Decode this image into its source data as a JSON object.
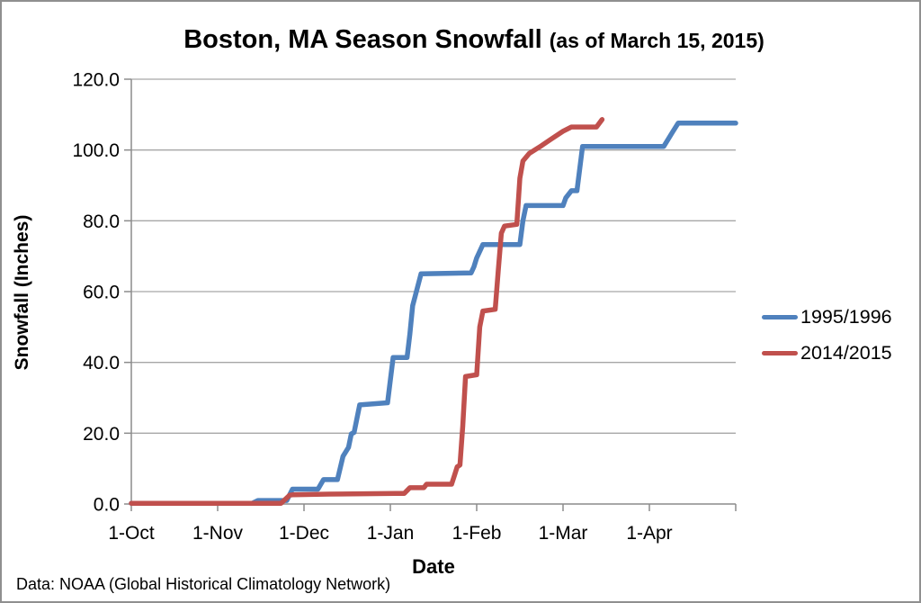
{
  "title": {
    "main": "Boston, MA Season Snowfall",
    "suffix": "(as of March 15, 2015)"
  },
  "footer": {
    "source": "Data: NOAA (Global Historical Climatology Network)"
  },
  "colors": {
    "series_blue": "#4f81bd",
    "series_red": "#c0504d",
    "gridline": "#a6a6a6",
    "axis": "#8c8c8c",
    "background": "#ffffff",
    "text": "#000000"
  },
  "chart_data": {
    "type": "line",
    "title": "Boston, MA Season Snowfall (as of March 15, 2015)",
    "xlabel": "Date",
    "ylabel": "Snowfall (Inches)",
    "ylim": [
      0,
      120
    ],
    "ytick_step": 20,
    "ytick_labels": [
      "0.0",
      "20.0",
      "40.0",
      "60.0",
      "80.0",
      "100.0",
      "120.0"
    ],
    "xtick_labels": [
      "1-Oct",
      "1-Nov",
      "1-Dec",
      "1-Jan",
      "1-Feb",
      "1-Mar",
      "1-Apr"
    ],
    "x_axis_months": [
      "Oct",
      "Nov",
      "Dec",
      "Jan",
      "Feb",
      "Mar",
      "Apr",
      "May"
    ],
    "x_axis_days_per_month": [
      31,
      30,
      31,
      31,
      28,
      31,
      30,
      31
    ],
    "grid": true,
    "legend_position": "right",
    "series": [
      {
        "name": "1995/1996",
        "color": "#4f81bd",
        "points": [
          [
            "Oct 1",
            0.2
          ],
          [
            "Nov 13",
            0.2
          ],
          [
            "Nov 15",
            1.0
          ],
          [
            "Nov 25",
            1.0
          ],
          [
            "Nov 27",
            4.2
          ],
          [
            "Dec 6",
            4.2
          ],
          [
            "Dec 8",
            6.9
          ],
          [
            "Dec 13",
            6.9
          ],
          [
            "Dec 15",
            13.5
          ],
          [
            "Dec 17",
            16.0
          ],
          [
            "Dec 18",
            19.8
          ],
          [
            "Dec 19",
            20.2
          ],
          [
            "Dec 21",
            28.0
          ],
          [
            "Dec 31",
            28.6
          ],
          [
            "Jan 2",
            41.4
          ],
          [
            "Jan 7",
            41.4
          ],
          [
            "Jan 8",
            48.0
          ],
          [
            "Jan 9",
            56.0
          ],
          [
            "Jan 10",
            59.0
          ],
          [
            "Jan 12",
            65.0
          ],
          [
            "Jan 30",
            65.3
          ],
          [
            "Jan 31",
            67.0
          ],
          [
            "Feb 1",
            69.5
          ],
          [
            "Feb 3",
            73.3
          ],
          [
            "Feb 15",
            73.3
          ],
          [
            "Feb 16",
            80.0
          ],
          [
            "Feb 17",
            84.3
          ],
          [
            "Mar 1",
            84.3
          ],
          [
            "Mar 2",
            86.5
          ],
          [
            "Mar 4",
            88.5
          ],
          [
            "Mar 6",
            88.5
          ],
          [
            "Mar 8",
            101.0
          ],
          [
            "Apr 6",
            101.0
          ],
          [
            "Apr 9",
            105.0
          ],
          [
            "Apr 11",
            107.6
          ],
          [
            "May 1",
            107.6
          ]
        ]
      },
      {
        "name": "2014/2015",
        "color": "#c0504d",
        "points": [
          [
            "Oct 1",
            0.2
          ],
          [
            "Nov 23",
            0.2
          ],
          [
            "Nov 26",
            2.5
          ],
          [
            "Nov 27",
            2.6
          ],
          [
            "Dec 10",
            2.8
          ],
          [
            "Jan 3",
            3.0
          ],
          [
            "Jan 6",
            3.0
          ],
          [
            "Jan 8",
            4.6
          ],
          [
            "Jan 13",
            4.6
          ],
          [
            "Jan 14",
            5.6
          ],
          [
            "Jan 23",
            5.6
          ],
          [
            "Jan 24",
            8.0
          ],
          [
            "Jan 25",
            10.5
          ],
          [
            "Jan 26",
            11.0
          ],
          [
            "Jan 27",
            22.0
          ],
          [
            "Jan 28",
            36.0
          ],
          [
            "Feb 1",
            36.5
          ],
          [
            "Feb 2",
            50.0
          ],
          [
            "Feb 3",
            54.5
          ],
          [
            "Feb 7",
            55.0
          ],
          [
            "Feb 8",
            66.0
          ],
          [
            "Feb 9",
            76.5
          ],
          [
            "Feb 10",
            78.5
          ],
          [
            "Feb 14",
            79.0
          ],
          [
            "Feb 15",
            92.0
          ],
          [
            "Feb 16",
            96.9
          ],
          [
            "Feb 18",
            99.0
          ],
          [
            "Feb 22",
            101.2
          ],
          [
            "Feb 25",
            103.0
          ],
          [
            "Mar 1",
            105.3
          ],
          [
            "Mar 4",
            106.5
          ],
          [
            "Mar 13",
            106.5
          ],
          [
            "Mar 15",
            108.6
          ]
        ]
      }
    ]
  }
}
